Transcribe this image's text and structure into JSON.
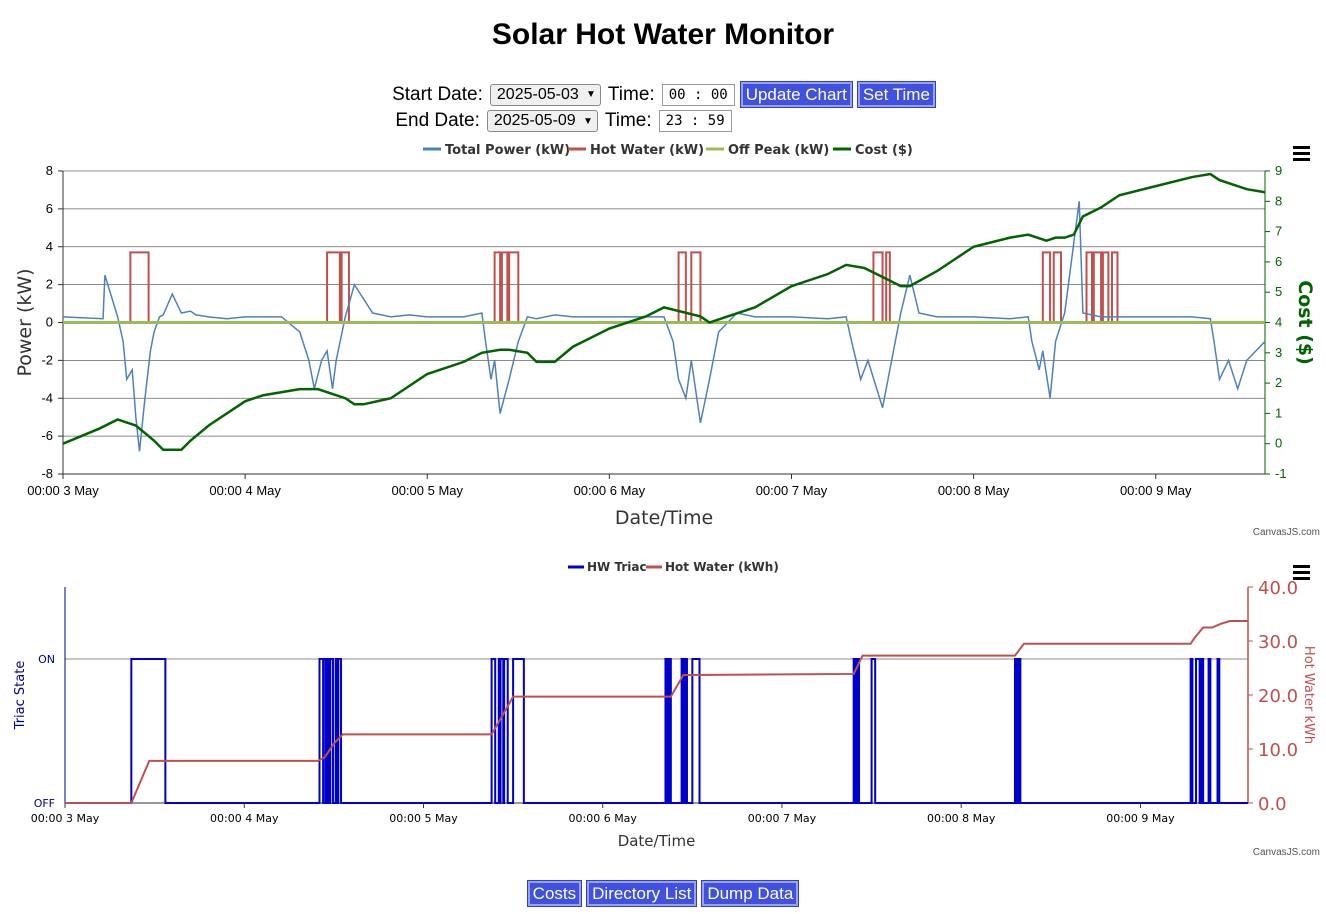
{
  "title": "Solar Hot Water Monitor",
  "controls": {
    "start_label": "Start Date:",
    "start_date": "2025-05-03",
    "start_time_label": "Time:",
    "start_time": "00 : 00",
    "update_button": "Update Chart",
    "set_time_button": "Set Time",
    "end_label": "End Date:",
    "end_date": "2025-05-09",
    "end_time_label": "Time:",
    "end_time": "23 : 59"
  },
  "footer": {
    "costs_button": "Costs",
    "directory_button": "Directory List",
    "dump_button": "Dump Data",
    "credit": "CanvasJS.com"
  },
  "colors": {
    "total_power": "#4f81bc",
    "hot_water": "#c0504e",
    "off_peak": "#9bbb58",
    "cost": "#006400",
    "triac": "#0000cc"
  },
  "chart_data": [
    {
      "type": "line",
      "xlabel": "Date/Time",
      "ylabel": "Power (kW)",
      "y2label": "Cost ($)",
      "ylim": [
        -8,
        8
      ],
      "y2lim": [
        -1,
        9
      ],
      "yticks": [
        "8",
        "6",
        "4",
        "2",
        "0",
        "-2",
        "-4",
        "-6",
        "-8"
      ],
      "y2ticks": [
        "9",
        "8",
        "7",
        "6",
        "5",
        "4",
        "3",
        "2",
        "1",
        "0",
        "-1"
      ],
      "xticks": [
        "00:00 3 May",
        "00:00 4 May",
        "00:00 5 May",
        "00:00 6 May",
        "00:00 7 May",
        "00:00 8 May",
        "00:00 9 May"
      ],
      "xrange_days": [
        0,
        6.6
      ],
      "grid": true,
      "legend_position": "top",
      "series": [
        {
          "name": "Total Power (kW)",
          "axis": "y",
          "x_days": [
            0,
            0.22,
            0.23,
            0.3,
            0.33,
            0.35,
            0.38,
            0.4,
            0.42,
            0.45,
            0.48,
            0.5,
            0.53,
            0.55,
            0.6,
            0.65,
            0.7,
            0.73,
            0.8,
            0.9,
            1.0,
            1.2,
            1.3,
            1.35,
            1.38,
            1.42,
            1.45,
            1.48,
            1.5,
            1.55,
            1.6,
            1.7,
            1.8,
            1.9,
            2.0,
            2.2,
            2.3,
            2.32,
            2.35,
            2.37,
            2.4,
            2.45,
            2.5,
            2.55,
            2.6,
            2.7,
            2.8,
            3.0,
            3.2,
            3.3,
            3.35,
            3.38,
            3.42,
            3.45,
            3.5,
            3.55,
            3.6,
            3.7,
            3.8,
            4.0,
            4.2,
            4.3,
            4.33,
            4.38,
            4.42,
            4.5,
            4.55,
            4.6,
            4.65,
            4.7,
            4.8,
            5.0,
            5.2,
            5.3,
            5.32,
            5.36,
            5.38,
            5.42,
            5.45,
            5.5,
            5.58,
            5.6,
            5.7,
            5.8,
            6.0,
            6.2,
            6.3,
            6.32,
            6.35,
            6.4,
            6.45,
            6.5,
            6.55,
            6.6
          ],
          "values": [
            0.3,
            0.2,
            2.5,
            0.3,
            -1,
            -3,
            -2.5,
            -5,
            -6.8,
            -4,
            -1.5,
            -0.5,
            0.3,
            0.4,
            1.5,
            0.5,
            0.6,
            0.4,
            0.3,
            0.2,
            0.3,
            0.3,
            -0.5,
            -2,
            -3.5,
            -2,
            -1.5,
            -3.5,
            -2,
            0.3,
            2,
            0.5,
            0.3,
            0.4,
            0.3,
            0.3,
            0.5,
            -1,
            -3,
            -2,
            -4.8,
            -3,
            -1,
            0.3,
            0.2,
            0.4,
            0.3,
            0.3,
            0.3,
            0.3,
            -1,
            -3,
            -4,
            -2,
            -5.3,
            -3,
            -0.5,
            0.5,
            0.3,
            0.3,
            0.2,
            0.3,
            -1,
            -3,
            -2,
            -4.5,
            -2,
            0.5,
            2.5,
            0.5,
            0.3,
            0.3,
            0.2,
            0.3,
            -1,
            -2.5,
            -1.5,
            -4,
            -1,
            0.5,
            6.4,
            0.5,
            0.3,
            0.3,
            0.3,
            0.3,
            0.2,
            -1,
            -3,
            -2,
            -3.5,
            -2,
            -1.5,
            -1
          ]
        },
        {
          "name": "Hot Water (kW)",
          "axis": "y",
          "intervals_days": [
            [
              0.37,
              0.47
            ],
            [
              1.45,
              1.52
            ],
            [
              1.53,
              1.57
            ],
            [
              2.37,
              2.4
            ],
            [
              2.41,
              2.44
            ],
            [
              2.45,
              2.5
            ],
            [
              3.38,
              3.42
            ],
            [
              3.45,
              3.5
            ],
            [
              4.45,
              4.5
            ],
            [
              4.52,
              4.54
            ],
            [
              5.38,
              5.42
            ],
            [
              5.44,
              5.48
            ],
            [
              5.62,
              5.65
            ],
            [
              5.66,
              5.7
            ],
            [
              5.71,
              5.74
            ],
            [
              5.76,
              5.79
            ]
          ],
          "on_value": 3.7
        },
        {
          "name": "Off Peak (kW)",
          "axis": "y",
          "x_days": [
            0,
            6.6
          ],
          "values": [
            0,
            0
          ]
        },
        {
          "name": "Cost ($)",
          "axis": "y2",
          "x_days": [
            0,
            0.2,
            0.3,
            0.4,
            0.5,
            0.55,
            0.65,
            0.7,
            0.8,
            1.0,
            1.1,
            1.3,
            1.4,
            1.55,
            1.6,
            1.65,
            1.8,
            2.0,
            2.2,
            2.3,
            2.4,
            2.45,
            2.55,
            2.6,
            2.7,
            2.8,
            3.0,
            3.2,
            3.3,
            3.5,
            3.55,
            3.6,
            3.8,
            4.0,
            4.2,
            4.3,
            4.4,
            4.5,
            4.6,
            4.65,
            4.8,
            5.0,
            5.2,
            5.3,
            5.4,
            5.45,
            5.5,
            5.55,
            5.6,
            5.7,
            5.8,
            6.0,
            6.2,
            6.3,
            6.35,
            6.5,
            6.6
          ],
          "values": [
            0,
            0.5,
            0.8,
            0.6,
            0.1,
            -0.2,
            -0.2,
            0.1,
            0.6,
            1.4,
            1.6,
            1.8,
            1.8,
            1.5,
            1.3,
            1.3,
            1.5,
            2.3,
            2.7,
            3,
            3.1,
            3.1,
            3,
            2.7,
            2.7,
            3.2,
            3.8,
            4.2,
            4.5,
            4.2,
            4,
            4.1,
            4.5,
            5.2,
            5.6,
            5.9,
            5.8,
            5.5,
            5.2,
            5.2,
            5.7,
            6.5,
            6.8,
            6.9,
            6.7,
            6.8,
            6.8,
            6.9,
            7.5,
            7.8,
            8.2,
            8.5,
            8.8,
            8.9,
            8.7,
            8.4,
            8.3
          ]
        }
      ]
    },
    {
      "type": "line",
      "xlabel": "Date/Time",
      "ylabel": "Triac State",
      "y2label": "Hot Water kWh",
      "yticks": [
        "ON",
        "OFF"
      ],
      "y2ticks": [
        "40.0",
        "30.0",
        "20.0",
        "10.0",
        "0.0"
      ],
      "y2lim": [
        0,
        40
      ],
      "xticks": [
        "00:00 3 May",
        "00:00 4 May",
        "00:00 5 May",
        "00:00 6 May",
        "00:00 7 May",
        "00:00 8 May",
        "00:00 9 May"
      ],
      "xrange_days": [
        0,
        6.6
      ],
      "legend_position": "top",
      "series": [
        {
          "name": "HW Triac",
          "axis": "y",
          "intervals_days": [
            [
              0.37,
              0.56
            ],
            [
              1.42,
              1.44
            ],
            [
              1.443,
              1.455
            ],
            [
              1.46,
              1.47
            ],
            [
              1.48,
              1.495
            ],
            [
              1.51,
              1.515
            ],
            [
              1.525,
              1.54
            ],
            [
              2.38,
              2.4
            ],
            [
              2.42,
              2.425
            ],
            [
              2.43,
              2.445
            ],
            [
              2.45,
              2.47
            ],
            [
              2.5,
              2.56
            ],
            [
              3.35,
              3.36
            ],
            [
              3.37,
              3.38
            ],
            [
              3.44,
              3.45
            ],
            [
              3.46,
              3.47
            ],
            [
              3.5,
              3.54
            ],
            [
              4.4,
              4.41
            ],
            [
              4.42,
              4.43
            ],
            [
              4.5,
              4.52
            ],
            [
              5.3,
              5.31
            ],
            [
              5.32,
              5.33
            ],
            [
              6.28,
              6.29
            ],
            [
              6.31,
              6.33
            ],
            [
              6.34,
              6.35
            ],
            [
              6.38,
              6.39
            ],
            [
              6.43,
              6.44
            ]
          ]
        },
        {
          "name": "Hot Water (kWh)",
          "axis": "y2",
          "x_days": [
            0,
            0.37,
            0.47,
            1.41,
            1.45,
            1.5,
            1.55,
            2.38,
            2.42,
            2.5,
            3.38,
            3.42,
            3.45,
            3.5,
            4.4,
            4.45,
            4.5,
            5.3,
            5.35,
            6.28,
            6.3,
            6.35,
            6.4,
            6.45,
            6.5,
            6.6
          ],
          "values": [
            0,
            0,
            7.8,
            7.8,
            8.5,
            11,
            12.7,
            12.7,
            15,
            19.7,
            19.7,
            22,
            23.7,
            23.7,
            23.9,
            27.3,
            27.3,
            27.3,
            29.5,
            29.5,
            30.5,
            32.5,
            32.5,
            33.2,
            33.7,
            33.7
          ]
        }
      ]
    }
  ]
}
